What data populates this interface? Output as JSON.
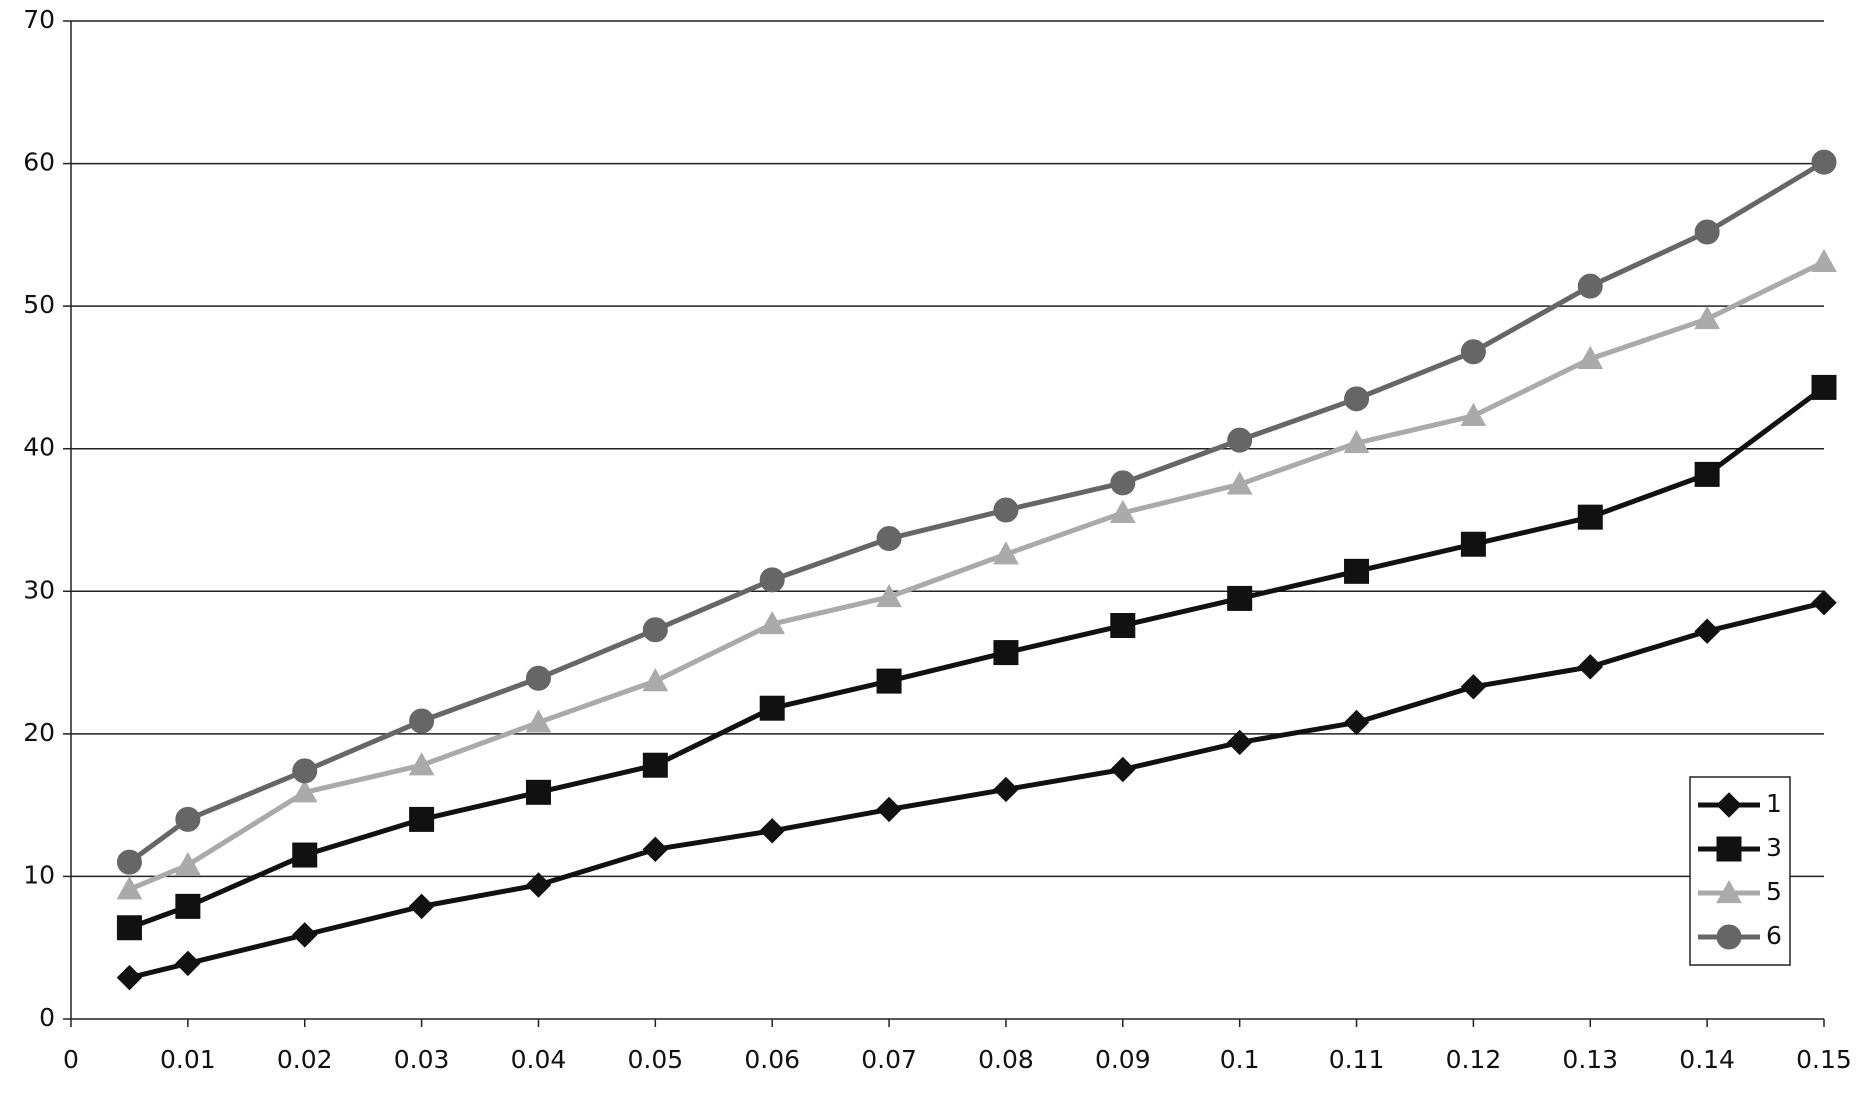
{
  "chart_data": {
    "type": "line",
    "x": [
      0.005,
      0.01,
      0.02,
      0.03,
      0.04,
      0.05,
      0.06,
      0.07,
      0.08,
      0.09,
      0.1,
      0.11,
      0.12,
      0.13,
      0.14,
      0.15
    ],
    "series": [
      {
        "name": "1",
        "color": "#111111",
        "marker": "diamond",
        "values": [
          2.9,
          3.9,
          5.9,
          7.9,
          9.4,
          11.9,
          13.2,
          14.7,
          16.1,
          17.5,
          19.4,
          20.8,
          23.3,
          24.7,
          27.2,
          29.2
        ]
      },
      {
        "name": "3",
        "color": "#111111",
        "marker": "square",
        "values": [
          6.4,
          7.9,
          11.5,
          14,
          15.9,
          17.8,
          21.8,
          23.7,
          25.7,
          27.6,
          29.5,
          31.4,
          33.3,
          35.2,
          38.2,
          44.3
        ]
      },
      {
        "name": "5",
        "color": "#aaaaaa",
        "marker": "triangle",
        "values": [
          9.1,
          10.8,
          15.9,
          17.8,
          20.8,
          23.7,
          27.7,
          29.6,
          32.6,
          35.5,
          37.5,
          40.4,
          42.3,
          46.3,
          49.1,
          53.1
        ]
      },
      {
        "name": "6",
        "color": "#666666",
        "marker": "circle",
        "values": [
          11,
          14,
          17.4,
          20.9,
          23.9,
          27.3,
          30.8,
          33.7,
          35.7,
          37.6,
          40.6,
          43.5,
          46.8,
          51.4,
          55.2,
          60.1
        ]
      }
    ],
    "xlim": [
      0,
      0.15
    ],
    "xticks": [
      0,
      0.01,
      0.02,
      0.03,
      0.04,
      0.05,
      0.06,
      0.07,
      0.08,
      0.09,
      0.1,
      0.11,
      0.12,
      0.13,
      0.14,
      0.15
    ],
    "ylim": [
      0,
      70
    ],
    "yticks": [
      0,
      10,
      20,
      30,
      40,
      50,
      60,
      70
    ],
    "grid": true,
    "legend": "lower right"
  }
}
